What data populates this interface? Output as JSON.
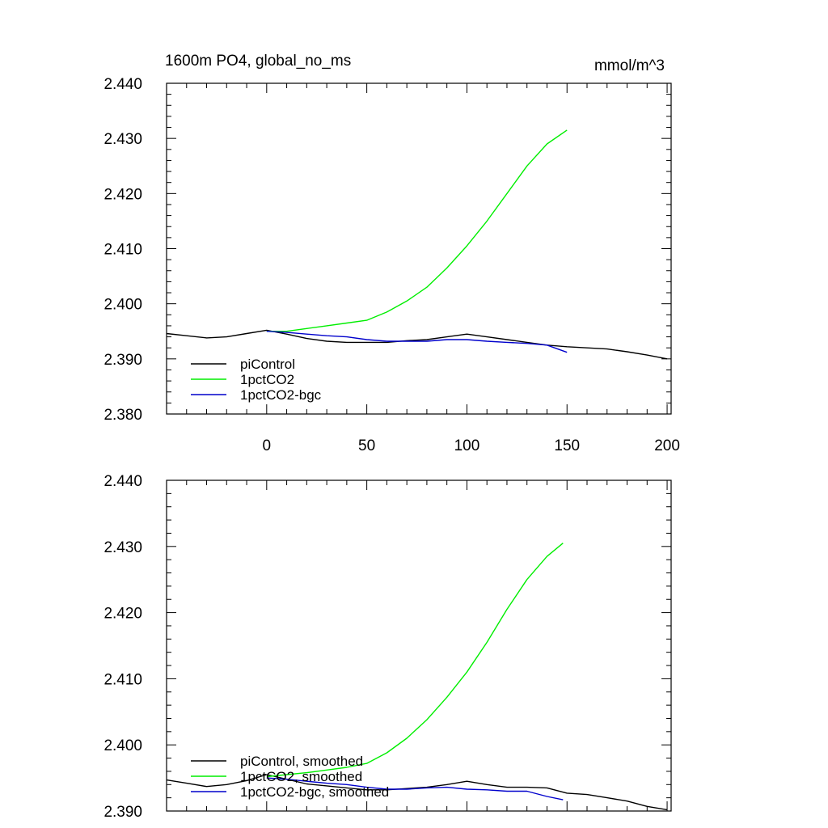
{
  "chart_data": [
    {
      "type": "line",
      "title": "1600m PO4, global_no_ms",
      "units": "mmol/m^3",
      "xlim": [
        -50,
        202
      ],
      "ylim": [
        2.38,
        2.44
      ],
      "x_ticks": [
        0,
        50,
        100,
        150,
        200
      ],
      "x_tick_labels": [
        "0",
        "50",
        "100",
        "150",
        "200"
      ],
      "y_ticks": [
        2.38,
        2.39,
        2.4,
        2.41,
        2.42,
        2.43,
        2.44
      ],
      "y_tick_labels": [
        "2.380",
        "2.390",
        "2.400",
        "2.410",
        "2.420",
        "2.430",
        "2.440"
      ],
      "legend_position": "bottom-left",
      "series": [
        {
          "name": "piControl",
          "color": "#000000",
          "x": [
            -50,
            -40,
            -30,
            -20,
            -10,
            0,
            10,
            20,
            30,
            40,
            50,
            60,
            70,
            80,
            90,
            100,
            110,
            120,
            130,
            140,
            150,
            160,
            170,
            180,
            190,
            200
          ],
          "y": [
            2.3946,
            2.3942,
            2.3938,
            2.394,
            2.3946,
            2.3952,
            2.3945,
            2.3937,
            2.3932,
            2.393,
            2.393,
            2.393,
            2.3933,
            2.3935,
            2.394,
            2.3945,
            2.394,
            2.3935,
            2.393,
            2.3925,
            2.3922,
            2.392,
            2.3918,
            2.3913,
            2.3907,
            2.39
          ]
        },
        {
          "name": "1pctCO2",
          "color": "#00ee00",
          "x": [
            0,
            10,
            20,
            30,
            40,
            50,
            60,
            70,
            80,
            90,
            100,
            110,
            120,
            130,
            140,
            150
          ],
          "y": [
            2.395,
            2.395,
            2.3955,
            2.396,
            2.3965,
            2.397,
            2.3985,
            2.4005,
            2.403,
            2.4065,
            2.4105,
            2.415,
            2.42,
            2.425,
            2.429,
            2.4315
          ]
        },
        {
          "name": "1pctCO2-bgc",
          "color": "#0000cc",
          "x": [
            0,
            10,
            20,
            30,
            40,
            50,
            60,
            70,
            80,
            90,
            100,
            110,
            120,
            130,
            140,
            150
          ],
          "y": [
            2.395,
            2.3948,
            2.3945,
            2.3942,
            2.394,
            2.3935,
            2.3932,
            2.3932,
            2.3932,
            2.3935,
            2.3935,
            2.3932,
            2.393,
            2.3928,
            2.3925,
            2.3912
          ]
        }
      ]
    },
    {
      "type": "line",
      "title": "",
      "units": "",
      "xlim": [
        -50,
        202
      ],
      "ylim": [
        2.39,
        2.44
      ],
      "x_ticks": [
        0,
        50,
        100,
        150,
        200
      ],
      "x_tick_labels": [],
      "y_ticks": [
        2.39,
        2.4,
        2.41,
        2.42,
        2.43,
        2.44
      ],
      "y_tick_labels": [
        "2.390",
        "2.400",
        "2.410",
        "2.420",
        "2.430",
        "2.440"
      ],
      "legend_position": "bottom-left",
      "series": [
        {
          "name": "piControl, smoothed",
          "color": "#000000",
          "x": [
            -50,
            -40,
            -30,
            -20,
            -10,
            0,
            10,
            20,
            30,
            40,
            50,
            60,
            70,
            80,
            90,
            100,
            110,
            120,
            130,
            140,
            150,
            160,
            170,
            180,
            190,
            200
          ],
          "y": [
            2.3947,
            2.3942,
            2.3937,
            2.394,
            2.3946,
            2.3955,
            2.3948,
            2.3941,
            2.3938,
            2.3935,
            2.3932,
            2.3932,
            2.3934,
            2.3936,
            2.394,
            2.3945,
            2.394,
            2.3936,
            2.3936,
            2.3935,
            2.3927,
            2.3925,
            2.392,
            2.3915,
            2.3907,
            2.3902
          ]
        },
        {
          "name": "1pctCO2, smoothed",
          "color": "#00ee00",
          "x": [
            0,
            10,
            20,
            30,
            40,
            50,
            60,
            70,
            80,
            90,
            100,
            110,
            120,
            130,
            140,
            148
          ],
          "y": [
            2.3952,
            2.3955,
            2.3958,
            2.3962,
            2.3966,
            2.3972,
            2.3988,
            2.401,
            2.4038,
            2.4072,
            2.411,
            2.4155,
            2.4205,
            2.425,
            2.4285,
            2.4305
          ]
        },
        {
          "name": "1pctCO2-bgc, smoothed",
          "color": "#0000cc",
          "x": [
            0,
            10,
            20,
            30,
            40,
            50,
            60,
            70,
            80,
            90,
            100,
            110,
            120,
            130,
            140,
            148
          ],
          "y": [
            2.395,
            2.3948,
            2.3945,
            2.3942,
            2.394,
            2.3936,
            2.3933,
            2.3933,
            2.3935,
            2.3936,
            2.3933,
            2.3932,
            2.393,
            2.393,
            2.3922,
            2.3917
          ]
        }
      ]
    }
  ]
}
